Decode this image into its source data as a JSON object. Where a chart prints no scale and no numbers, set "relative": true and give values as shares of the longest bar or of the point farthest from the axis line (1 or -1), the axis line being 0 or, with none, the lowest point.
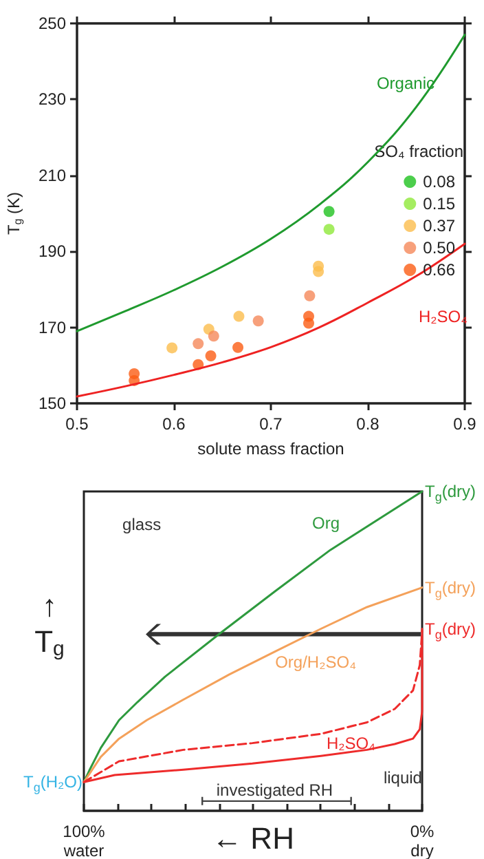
{
  "chart_data": [
    {
      "type": "scatter",
      "xlabel": "solute mass fraction",
      "ylabel": "T$_{g}$ (K)",
      "xlim": [
        0.5,
        0.9
      ],
      "xticks": [
        0.5,
        0.6,
        0.7,
        0.8,
        0.9
      ],
      "ylim": [
        150,
        250
      ],
      "yticks": [
        150,
        170,
        190,
        210,
        230,
        250
      ],
      "grid": false,
      "marker": "circle",
      "legend": "right",
      "legend_title": "SO₄ fraction",
      "series": [
        {
          "name": "Organic",
          "type": "line",
          "marker": "none",
          "color": "#1f9a2e",
          "x": [
            0.5,
            0.55,
            0.6,
            0.65,
            0.7,
            0.75,
            0.8,
            0.85,
            0.9
          ],
          "values": [
            169,
            174.3,
            179.8,
            186,
            193.3,
            202.3,
            213.5,
            228,
            247
          ]
        },
        {
          "name": "H₂SO₄",
          "type": "line",
          "marker": "none",
          "color": "#ee2222",
          "x": [
            0.5,
            0.55,
            0.6,
            0.65,
            0.7,
            0.75,
            0.8,
            0.85,
            0.9
          ],
          "values": [
            151.8,
            154.5,
            157.5,
            160.8,
            164.8,
            170,
            176.5,
            183.5,
            192
          ]
        },
        {
          "name": "0.08",
          "color": "#1fc21f",
          "x": [
            0.76
          ],
          "values": [
            200.5
          ]
        },
        {
          "name": "0.15",
          "color": "#8ee83a",
          "x": [
            0.76
          ],
          "values": [
            195.8
          ]
        },
        {
          "name": "0.37",
          "color": "#fbbd4c",
          "x": [
            0.598,
            0.636,
            0.667,
            0.749,
            0.749
          ],
          "values": [
            164.6,
            169.5,
            172.9,
            186.1,
            184.7
          ]
        },
        {
          "name": "0.50",
          "color": "#f5885a",
          "x": [
            0.625,
            0.641,
            0.687,
            0.74
          ],
          "values": [
            165.7,
            167.7,
            171.7,
            178.3
          ]
        },
        {
          "name": "0.66",
          "color": "#fb5d14",
          "x": [
            0.559,
            0.559,
            0.625,
            0.638,
            0.666,
            0.739,
            0.739
          ],
          "values": [
            157.8,
            156,
            160.2,
            162.5,
            164.7,
            172.9,
            171.1
          ]
        }
      ]
    },
    {
      "type": "line",
      "relative": true,
      "xlabel": "← RH",
      "ylabel": "↑\nT$_{g}$",
      "xlim": [
        100,
        0
      ],
      "xticks": [
        {
          "value": 100,
          "label": "100%\nwater"
        },
        {
          "value": 90,
          "label": null
        },
        {
          "value": 80,
          "label": null
        },
        {
          "value": 70,
          "label": null
        },
        {
          "value": 60,
          "label": null
        },
        {
          "value": 50,
          "label": null
        },
        {
          "value": 40,
          "label": null
        },
        {
          "value": 30,
          "label": null
        },
        {
          "value": 20,
          "label": null
        },
        {
          "value": 10,
          "label": null
        },
        {
          "value": 0,
          "label": "0%\ndry"
        }
      ],
      "series": [
        {
          "name": "Org",
          "color": "#2e9a3e",
          "x": [
            100,
            98.4,
            95,
            89.6,
            84.1,
            76,
            59.7,
            43.4,
            27.1,
            0
          ],
          "values": [
            0.09,
            0.126,
            0.197,
            0.284,
            0.341,
            0.42,
            0.556,
            0.688,
            0.817,
            1
          ]
        },
        {
          "name": "Org/H₂SO₄",
          "color": "#f4a15a",
          "x": [
            100,
            98.4,
            95,
            89.6,
            81.4,
            70.6,
            57,
            43.4,
            29.9,
            16.3,
            0
          ],
          "values": [
            0.09,
            0.115,
            0.169,
            0.226,
            0.284,
            0.348,
            0.427,
            0.499,
            0.57,
            0.638,
            0.699
          ]
        },
        {
          "name": "H₂SO₄",
          "color": "#ee2b2b",
          "x": [
            100,
            90.9,
            70.6,
            50.2,
            29.9,
            16.3,
            8.1,
            2.7,
            0.7,
            0,
            0
          ],
          "values": [
            0.09,
            0.112,
            0.129,
            0.148,
            0.172,
            0.191,
            0.209,
            0.226,
            0.255,
            0.312,
            0.57
          ]
        },
        {
          "color": "#ee2b2b",
          "line_style": "dashed",
          "x": [
            100,
            89.6,
            70.6,
            50.2,
            29.9,
            16.3,
            8.1,
            2.7,
            0.7,
            0
          ],
          "values": [
            0.09,
            0.155,
            0.191,
            0.212,
            0.241,
            0.277,
            0.319,
            0.377,
            0.456,
            0.563
          ]
        }
      ],
      "annotations": [
        "investigated RH",
        "T$_{g}$(dry)",
        "T$_{g}$(dry)",
        "T$_{g}$(dry)",
        {
          "text": "T$_{g}$(H₂O)",
          "x": 100,
          "y": 0.09
        },
        "glass",
        "liquid"
      ]
    }
  ]
}
